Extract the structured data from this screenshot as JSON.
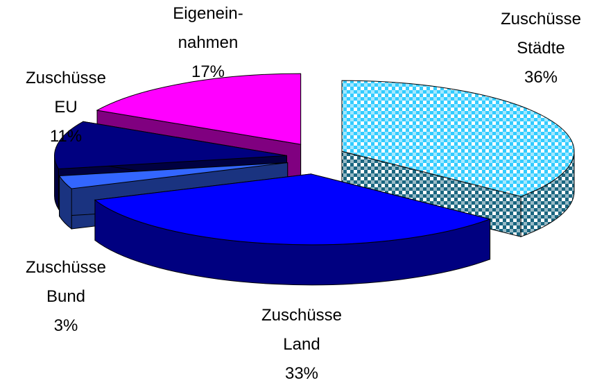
{
  "chart_data": {
    "type": "pie3d",
    "categories": [
      "Zuschüsse\nStädte",
      "Zuschüsse\nLand",
      "Zuschüsse\nBund",
      "Zuschüsse\nEU",
      "Eigenein-\nnahmen"
    ],
    "values": [
      36,
      33,
      3,
      11,
      17
    ],
    "value_labels": [
      "36%",
      "33%",
      "3%",
      "11%",
      "17%"
    ],
    "colors": [
      "#33ccff",
      "#0000ff",
      "#3366ff",
      "#000080",
      "#ff00ff"
    ],
    "patterns": [
      "checker",
      null,
      null,
      null,
      null
    ],
    "explode": true
  }
}
